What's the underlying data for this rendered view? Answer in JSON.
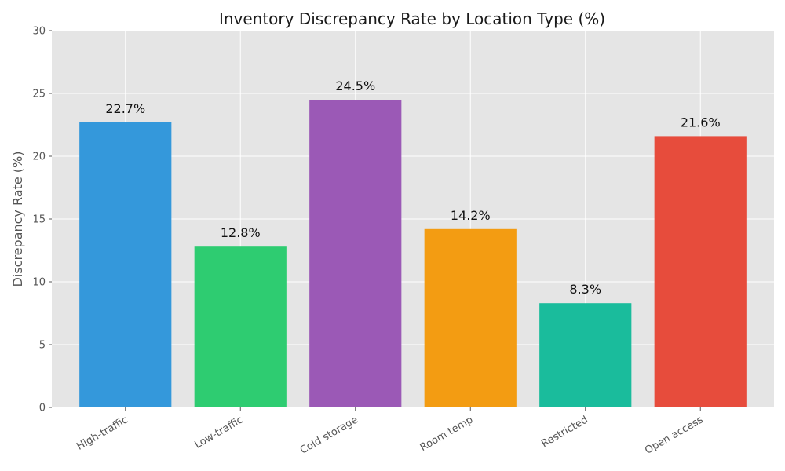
{
  "chart_data": {
    "type": "bar",
    "title": "Inventory Discrepancy Rate by Location Type (%)",
    "xlabel": "",
    "ylabel": "Discrepancy Rate (%)",
    "categories": [
      "High-traffic",
      "Low-traffic",
      "Cold storage",
      "Room temp",
      "Restricted",
      "Open access"
    ],
    "values": [
      22.7,
      12.8,
      24.5,
      14.2,
      8.3,
      21.6
    ],
    "data_labels": [
      "22.7%",
      "12.8%",
      "24.5%",
      "14.2%",
      "8.3%",
      "21.6%"
    ],
    "colors": [
      "#3498db",
      "#2ecc71",
      "#9b59b6",
      "#f39c12",
      "#1abc9c",
      "#e74c3c"
    ],
    "ylim": [
      0,
      30
    ],
    "yticks": [
      0,
      5,
      10,
      15,
      20,
      25,
      30
    ],
    "ytick_labels": [
      "0",
      "5",
      "10",
      "15",
      "20",
      "25",
      "30"
    ],
    "grid": true,
    "background": "#e5e5e5",
    "grid_color": "#ffffff"
  }
}
